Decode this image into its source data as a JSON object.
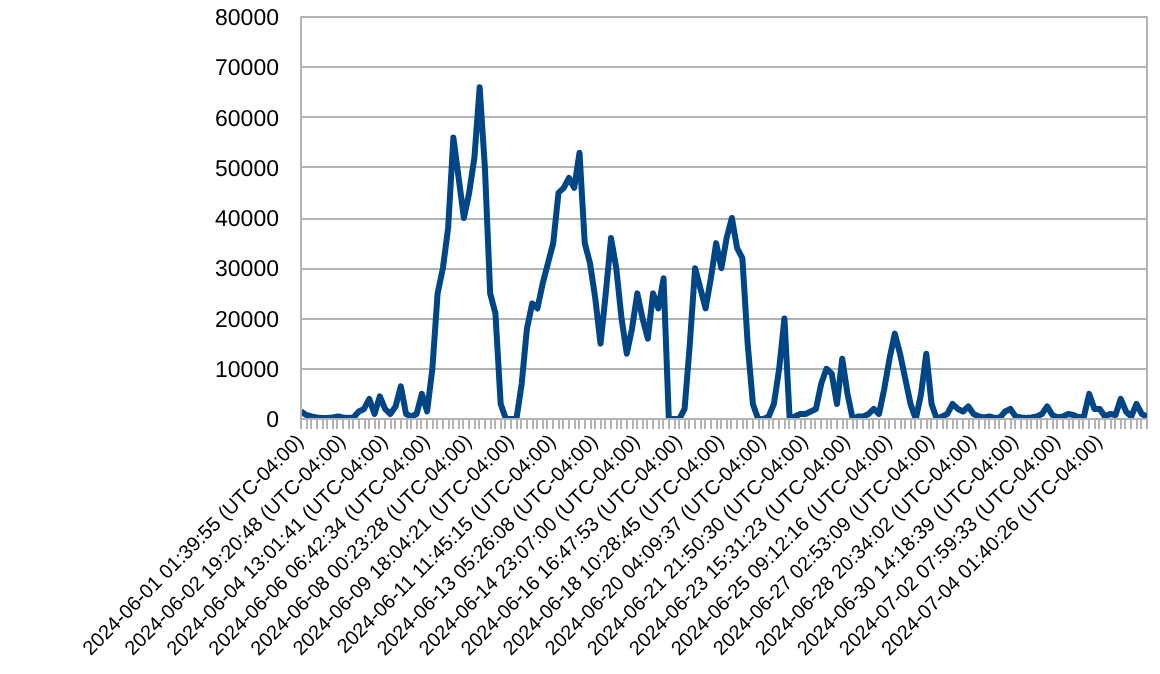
{
  "chart_data": {
    "type": "line",
    "categories": [
      "2024-06-01 01:39:55 (UTC-04:00)",
      null,
      null,
      null,
      null,
      null,
      null,
      null,
      "2024-06-02 19:20:48 (UTC-04:00)",
      null,
      null,
      null,
      null,
      null,
      null,
      null,
      "2024-06-04 13:01:41 (UTC-04:00)",
      null,
      null,
      null,
      null,
      null,
      null,
      null,
      "2024-06-06 06:42:34 (UTC-04:00)",
      null,
      null,
      null,
      null,
      null,
      null,
      null,
      "2024-06-08 00:23:28 (UTC-04:00)",
      null,
      null,
      null,
      null,
      null,
      null,
      null,
      "2024-06-09 18:04:21 (UTC-04:00)",
      null,
      null,
      null,
      null,
      null,
      null,
      null,
      "2024-06-11 11:45:15 (UTC-04:00)",
      null,
      null,
      null,
      null,
      null,
      null,
      null,
      "2024-06-13 05:26:08 (UTC-04:00)",
      null,
      null,
      null,
      null,
      null,
      null,
      null,
      "2024-06-14 23:07:00 (UTC-04:00)",
      null,
      null,
      null,
      null,
      null,
      null,
      null,
      "2024-06-16 16:47:53 (UTC-04:00)",
      null,
      null,
      null,
      null,
      null,
      null,
      null,
      "2024-06-18 10:28:45 (UTC-04:00)",
      null,
      null,
      null,
      null,
      null,
      null,
      null,
      "2024-06-20 04:09:37 (UTC-04:00)",
      null,
      null,
      null,
      null,
      null,
      null,
      null,
      "2024-06-21 21:50:30 (UTC-04:00)",
      null,
      null,
      null,
      null,
      null,
      null,
      null,
      "2024-06-23 15:31:23 (UTC-04:00)",
      null,
      null,
      null,
      null,
      null,
      null,
      null,
      "2024-06-25 09:12:16 (UTC-04:00)",
      null,
      null,
      null,
      null,
      null,
      null,
      null,
      "2024-06-27 02:53:09 (UTC-04:00)",
      null,
      null,
      null,
      null,
      null,
      null,
      null,
      "2024-06-28 20:34:02 (UTC-04:00)",
      null,
      null,
      null,
      null,
      null,
      null,
      null,
      "2024-06-30 14:18:39 (UTC-04:00)",
      null,
      null,
      null,
      null,
      null,
      null,
      null,
      "2024-07-02 07:59:33 (UTC-04:00)",
      null,
      null,
      null,
      null,
      null,
      null,
      null,
      "2024-07-04 01:40:26 (UTC-04:00)",
      null,
      null,
      null,
      null,
      null,
      null,
      null,
      null,
      null
    ],
    "series": [
      {
        "color": "#004586",
        "values": [
          1500,
          800,
          500,
          300,
          200,
          200,
          300,
          500,
          300,
          200,
          300,
          1500,
          2000,
          4000,
          1000,
          4500,
          2000,
          1000,
          2500,
          6500,
          1000,
          500,
          1000,
          5000,
          1500,
          10000,
          25000,
          30000,
          38000,
          56000,
          48000,
          40000,
          45000,
          52000,
          66000,
          50000,
          25000,
          21000,
          3000,
          0,
          0,
          0,
          7000,
          18000,
          23000,
          22000,
          27000,
          31000,
          35000,
          45000,
          46000,
          48000,
          46000,
          53000,
          35000,
          31000,
          24000,
          15000,
          25000,
          36000,
          30000,
          20000,
          13000,
          18000,
          25000,
          20000,
          16000,
          25000,
          22000,
          28000,
          0,
          0,
          0,
          2000,
          15000,
          30000,
          26000,
          22000,
          28000,
          35000,
          30000,
          36000,
          40000,
          34000,
          32000,
          15000,
          3000,
          0,
          0,
          500,
          3000,
          10000,
          20000,
          0,
          500,
          1000,
          1000,
          1500,
          2000,
          7000,
          10000,
          9000,
          3000,
          12000,
          5000,
          0,
          500,
          500,
          1000,
          2000,
          1000,
          6000,
          12000,
          17000,
          13000,
          8000,
          3000,
          0,
          5000,
          13000,
          3000,
          0,
          500,
          1000,
          3000,
          2000,
          1500,
          2500,
          1000,
          500,
          300,
          500,
          200,
          300,
          1500,
          2000,
          500,
          300,
          200,
          300,
          500,
          1000,
          2500,
          800,
          300,
          500,
          1000,
          800,
          300,
          500,
          5000,
          2000,
          2000,
          500,
          1000,
          800,
          4000,
          1500,
          500,
          3000,
          1000,
          500
        ]
      }
    ],
    "ylim": [
      0,
      80000
    ],
    "yticks": [
      0,
      10000,
      20000,
      30000,
      40000,
      50000,
      60000,
      70000,
      80000
    ],
    "grid": "y",
    "marker": "none",
    "line_style": "solid"
  }
}
